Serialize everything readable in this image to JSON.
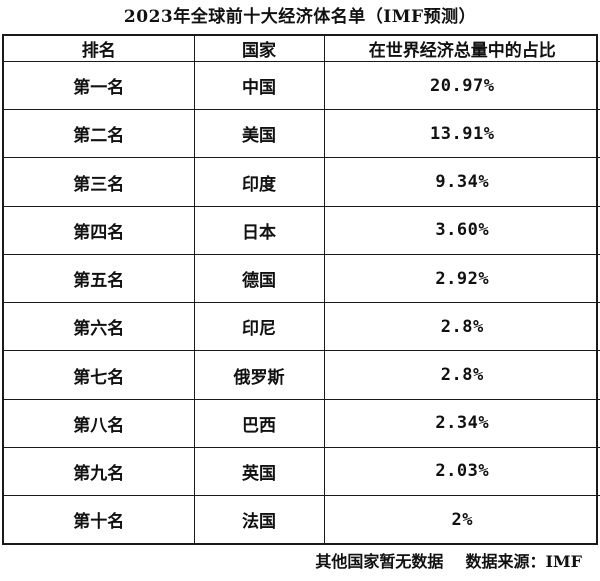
{
  "chart_data": {
    "type": "table",
    "title": "2023年全球前十大经济体名单（IMF预测）",
    "columns": [
      "排名",
      "国家",
      "在世界经济总量中的占比"
    ],
    "rows": [
      {
        "rank": "第一名",
        "country": "中国",
        "share": "20.97%"
      },
      {
        "rank": "第二名",
        "country": "美国",
        "share": "13.91%"
      },
      {
        "rank": "第三名",
        "country": "印度",
        "share": "9.34%"
      },
      {
        "rank": "第四名",
        "country": "日本",
        "share": "3.60%"
      },
      {
        "rank": "第五名",
        "country": "德国",
        "share": "2.92%"
      },
      {
        "rank": "第六名",
        "country": "印尼",
        "share": "2.8%"
      },
      {
        "rank": "第七名",
        "country": "俄罗斯",
        "share": "2.8%"
      },
      {
        "rank": "第八名",
        "country": "巴西",
        "share": "2.34%"
      },
      {
        "rank": "第九名",
        "country": "英国",
        "share": "2.03%"
      },
      {
        "rank": "第十名",
        "country": "法国",
        "share": "2%"
      }
    ]
  },
  "footer": {
    "note": "其他国家暂无数据",
    "source": "数据来源：IMF"
  }
}
